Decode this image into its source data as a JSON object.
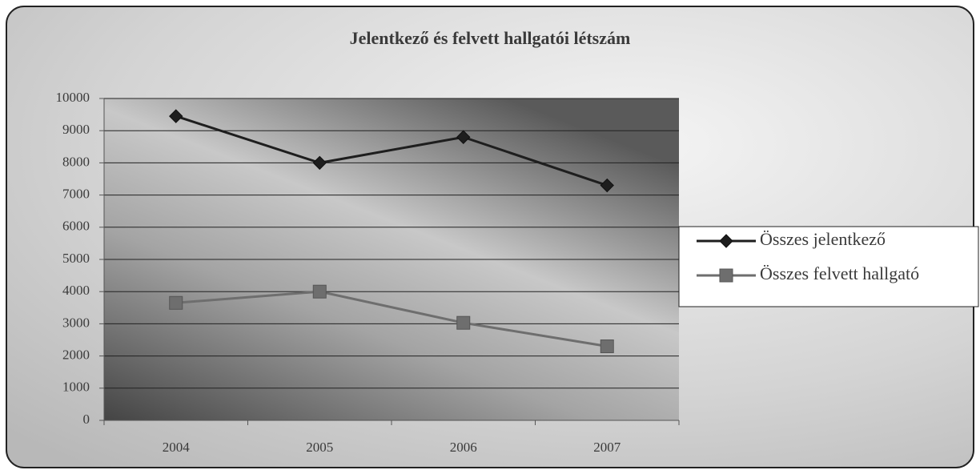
{
  "chart_data": {
    "type": "line",
    "title": "Jelentkező és felvett hallgatói létszám",
    "categories": [
      "2004",
      "2005",
      "2006",
      "2007"
    ],
    "series": [
      {
        "name": "Összes jelentkező",
        "color": "#1e1e1e",
        "marker": "diamond",
        "values": [
          9450,
          8000,
          8800,
          7300
        ]
      },
      {
        "name": "Összes felvett hallgató",
        "color": "#6e6e6e",
        "marker": "square",
        "values": [
          3650,
          4000,
          3030,
          2300
        ]
      }
    ],
    "ylim": [
      0,
      10000
    ],
    "yticks": [
      0,
      1000,
      2000,
      3000,
      4000,
      5000,
      6000,
      7000,
      8000,
      9000,
      10000
    ],
    "grid": true,
    "legend": "right"
  }
}
